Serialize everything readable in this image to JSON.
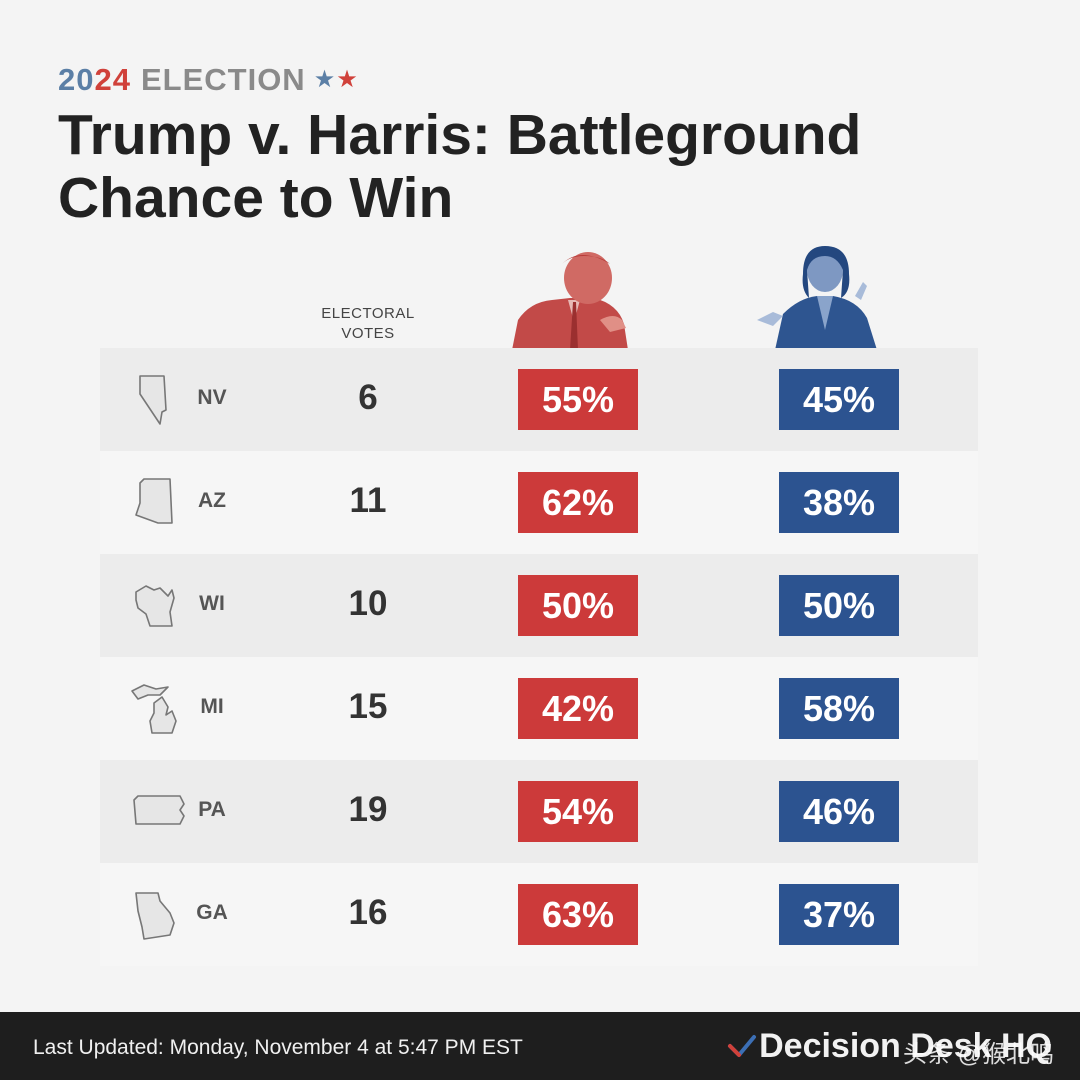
{
  "kicker": {
    "year_part1": "20",
    "year_part2": "24",
    "word": "ELECTION",
    "star1": "★",
    "star2": "★"
  },
  "title": "Trump v. Harris: Battleground Chance to Win",
  "columns": {
    "electoral_votes": "ELECTORAL VOTES"
  },
  "colors": {
    "trump": "#cc3a3a",
    "harris": "#2c5390",
    "kicker_blue": "#5b7fa6",
    "kicker_red": "#d0413a"
  },
  "rows": [
    {
      "state": "NV",
      "icon": "nevada-outline-icon",
      "electoral_votes": "6",
      "trump_pct": "55%",
      "harris_pct": "45%"
    },
    {
      "state": "AZ",
      "icon": "arizona-outline-icon",
      "electoral_votes": "11",
      "trump_pct": "62%",
      "harris_pct": "38%"
    },
    {
      "state": "WI",
      "icon": "wisconsin-outline-icon",
      "electoral_votes": "10",
      "trump_pct": "50%",
      "harris_pct": "50%"
    },
    {
      "state": "MI",
      "icon": "michigan-outline-icon",
      "electoral_votes": "15",
      "trump_pct": "42%",
      "harris_pct": "58%"
    },
    {
      "state": "PA",
      "icon": "pennsylvania-outline-icon",
      "electoral_votes": "19",
      "trump_pct": "54%",
      "harris_pct": "46%"
    },
    {
      "state": "GA",
      "icon": "georgia-outline-icon",
      "electoral_votes": "16",
      "trump_pct": "63%",
      "harris_pct": "37%"
    }
  ],
  "footer": {
    "last_updated": "Last Updated: Monday, November 4 at 5:47 PM EST",
    "brand": "Decision Desk HQ",
    "watermark": "头条 @猴北鸣"
  }
}
